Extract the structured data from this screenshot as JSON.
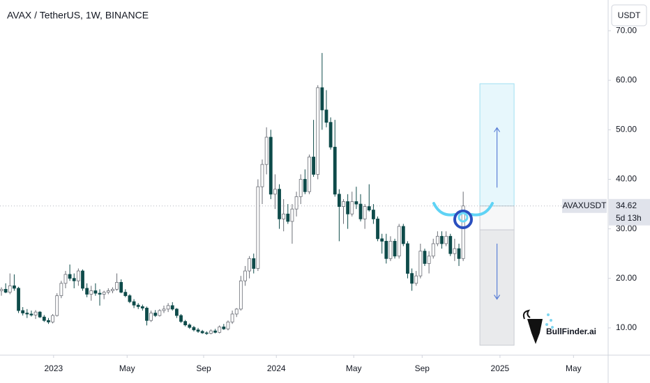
{
  "chart_data": {
    "type": "candlestick",
    "title": "AVAX / TetherUS, 1W, BINANCE",
    "currency_button": "USDT",
    "symbol_label": "AVAXUSDT",
    "last_price": 34.62,
    "countdown": "5d 13h",
    "watermark": "BullFinder.ai",
    "up_color": "#ffffff",
    "down_color": "#0e4b4a",
    "ylim": [
      4.5,
      76.2
    ],
    "yticks": [
      {
        "value": 10,
        "label": "10.00"
      },
      {
        "value": 20,
        "label": "20.00"
      },
      {
        "value": 30,
        "label": "30.00"
      },
      {
        "value": 40,
        "label": "40.00"
      },
      {
        "value": 50,
        "label": "50.00"
      },
      {
        "value": 60,
        "label": "60.00"
      },
      {
        "value": 70,
        "label": "70.00"
      }
    ],
    "xlim": [
      -0.33,
      141.9
    ],
    "xticks": [
      {
        "value": 12.2,
        "label": "2023"
      },
      {
        "value": 29.4,
        "label": "May"
      },
      {
        "value": 47.3,
        "label": "Sep"
      },
      {
        "value": 64.3,
        "label": "2024"
      },
      {
        "value": 82.4,
        "label": "May"
      },
      {
        "value": 98.4,
        "label": "Sep"
      },
      {
        "value": 116.6,
        "label": "2025"
      },
      {
        "value": 133.8,
        "label": "May"
      }
    ],
    "position": {
      "x_range": [
        111.9,
        119.9
      ],
      "target": 59.3,
      "entry": 34.62,
      "mid": 29.8,
      "stop": 6.5
    },
    "candles": [
      [
        17.5,
        18.2,
        16.5,
        17.8
      ],
      [
        17.8,
        19.0,
        17.0,
        17.2
      ],
      [
        17.2,
        21.0,
        16.8,
        18.5
      ],
      [
        18.5,
        20.8,
        17.5,
        18.0
      ],
      [
        18.0,
        18.3,
        13.0,
        13.5
      ],
      [
        13.5,
        14.2,
        12.5,
        13.0
      ],
      [
        13.0,
        13.8,
        12.0,
        12.8
      ],
      [
        12.8,
        13.5,
        12.3,
        12.6
      ],
      [
        12.6,
        13.6,
        11.8,
        13.2
      ],
      [
        13.2,
        13.4,
        12.0,
        12.2
      ],
      [
        12.2,
        12.6,
        11.2,
        11.5
      ],
      [
        11.5,
        12.0,
        10.8,
        11.2
      ],
      [
        11.2,
        12.8,
        10.9,
        12.5
      ],
      [
        12.5,
        17.0,
        12.3,
        16.5
      ],
      [
        16.5,
        19.5,
        16.0,
        19.0
      ],
      [
        19.0,
        21.5,
        18.0,
        20.8
      ],
      [
        20.8,
        22.8,
        19.5,
        20.0
      ],
      [
        20.0,
        21.0,
        18.0,
        19.5
      ],
      [
        19.5,
        22.0,
        18.5,
        21.5
      ],
      [
        21.5,
        21.8,
        17.5,
        18.0
      ],
      [
        18.0,
        19.0,
        16.2,
        16.8
      ],
      [
        16.8,
        18.5,
        15.5,
        17.5
      ],
      [
        17.5,
        19.0,
        16.5,
        17.0
      ],
      [
        17.0,
        17.8,
        14.5,
        16.8
      ],
      [
        16.8,
        17.5,
        15.8,
        17.2
      ],
      [
        17.2,
        18.0,
        16.8,
        17.5
      ],
      [
        17.5,
        18.2,
        17.0,
        17.8
      ],
      [
        17.8,
        21.0,
        17.5,
        19.2
      ],
      [
        19.2,
        19.8,
        17.0,
        17.2
      ],
      [
        17.2,
        17.8,
        16.2,
        16.5
      ],
      [
        16.5,
        16.8,
        15.0,
        15.3
      ],
      [
        15.3,
        15.8,
        14.0,
        14.6
      ],
      [
        14.6,
        15.0,
        13.8,
        14.3
      ],
      [
        14.3,
        14.7,
        13.5,
        14.0
      ],
      [
        14.0,
        14.3,
        10.5,
        11.5
      ],
      [
        11.5,
        13.5,
        11.2,
        13.0
      ],
      [
        13.0,
        13.6,
        12.2,
        12.5
      ],
      [
        12.5,
        13.8,
        12.3,
        13.5
      ],
      [
        13.5,
        14.5,
        13.0,
        13.8
      ],
      [
        13.8,
        15.0,
        13.2,
        14.5
      ],
      [
        14.5,
        15.2,
        13.5,
        13.8
      ],
      [
        13.8,
        14.0,
        12.0,
        12.5
      ],
      [
        12.5,
        12.8,
        11.0,
        11.3
      ],
      [
        11.3,
        11.6,
        10.3,
        10.6
      ],
      [
        10.6,
        10.9,
        9.8,
        10.1
      ],
      [
        10.1,
        10.4,
        9.3,
        9.6
      ],
      [
        9.6,
        10.0,
        9.0,
        9.3
      ],
      [
        9.3,
        9.6,
        8.8,
        9.0
      ],
      [
        9.0,
        9.3,
        8.6,
        8.9
      ],
      [
        8.9,
        9.7,
        8.7,
        9.4
      ],
      [
        9.4,
        9.8,
        8.9,
        9.1
      ],
      [
        9.1,
        10.5,
        8.9,
        10.2
      ],
      [
        10.2,
        10.8,
        9.6,
        9.8
      ],
      [
        9.8,
        11.5,
        9.5,
        11.2
      ],
      [
        11.2,
        13.5,
        10.8,
        12.8
      ],
      [
        12.8,
        14.0,
        12.2,
        13.8
      ],
      [
        13.8,
        20.5,
        13.5,
        19.5
      ],
      [
        19.5,
        22.5,
        18.5,
        21.5
      ],
      [
        21.5,
        24.5,
        20.0,
        24.0
      ],
      [
        24.0,
        25.0,
        21.0,
        22.0
      ],
      [
        22.0,
        40.0,
        21.5,
        38.5
      ],
      [
        38.5,
        44.0,
        35.0,
        43.0
      ],
      [
        43.0,
        50.5,
        41.0,
        48.5
      ],
      [
        48.5,
        50.0,
        36.0,
        37.0
      ],
      [
        37.0,
        41.0,
        34.0,
        38.0
      ],
      [
        38.0,
        39.0,
        30.0,
        32.0
      ],
      [
        32.0,
        36.0,
        29.5,
        33.0
      ],
      [
        33.0,
        35.0,
        31.0,
        31.5
      ],
      [
        31.5,
        35.0,
        27.0,
        34.0
      ],
      [
        34.0,
        37.5,
        32.5,
        36.5
      ],
      [
        36.5,
        41.0,
        35.0,
        40.0
      ],
      [
        40.0,
        42.0,
        37.0,
        37.5
      ],
      [
        37.5,
        45.0,
        37.0,
        44.5
      ],
      [
        44.5,
        52.0,
        40.5,
        41.0
      ],
      [
        41.0,
        59.0,
        40.0,
        58.5
      ],
      [
        58.5,
        65.5,
        50.0,
        54.0
      ],
      [
        54.0,
        58.0,
        50.5,
        51.5
      ],
      [
        51.5,
        52.5,
        46.0,
        46.5
      ],
      [
        46.5,
        52.0,
        36.5,
        37.0
      ],
      [
        37.0,
        38.0,
        27.5,
        34.5
      ],
      [
        34.5,
        36.0,
        31.0,
        35.5
      ],
      [
        35.5,
        37.0,
        30.0,
        33.0
      ],
      [
        33.0,
        37.5,
        32.5,
        35.5
      ],
      [
        35.5,
        38.5,
        34.0,
        35.0
      ],
      [
        35.0,
        37.0,
        31.5,
        32.0
      ],
      [
        32.0,
        35.0,
        30.0,
        34.5
      ],
      [
        34.5,
        39.0,
        33.5,
        33.8
      ],
      [
        33.8,
        35.0,
        31.0,
        32.0
      ],
      [
        32.0,
        32.5,
        27.5,
        28.0
      ],
      [
        28.0,
        29.0,
        25.0,
        27.5
      ],
      [
        27.5,
        29.0,
        23.0,
        24.0
      ],
      [
        24.0,
        28.5,
        23.5,
        27.5
      ],
      [
        27.5,
        28.0,
        24.0,
        24.5
      ],
      [
        24.5,
        31.0,
        24.0,
        30.5
      ],
      [
        30.5,
        31.0,
        26.5,
        27.0
      ],
      [
        27.0,
        27.5,
        20.0,
        21.0
      ],
      [
        21.0,
        22.0,
        17.5,
        19.0
      ],
      [
        19.0,
        21.5,
        18.5,
        20.5
      ],
      [
        20.5,
        27.0,
        20.0,
        25.5
      ],
      [
        25.5,
        26.0,
        22.5,
        23.0
      ],
      [
        23.0,
        25.5,
        21.0,
        24.5
      ],
      [
        24.5,
        28.0,
        24.0,
        27.0
      ],
      [
        27.0,
        29.5,
        26.5,
        28.5
      ],
      [
        28.5,
        29.5,
        26.0,
        27.0
      ],
      [
        27.0,
        29.5,
        26.5,
        28.5
      ],
      [
        28.5,
        29.0,
        24.5,
        25.0
      ],
      [
        25.0,
        28.0,
        23.5,
        26.0
      ],
      [
        26.0,
        27.0,
        22.5,
        24.0
      ],
      [
        24.0,
        37.5,
        23.5,
        34.62
      ]
    ]
  }
}
